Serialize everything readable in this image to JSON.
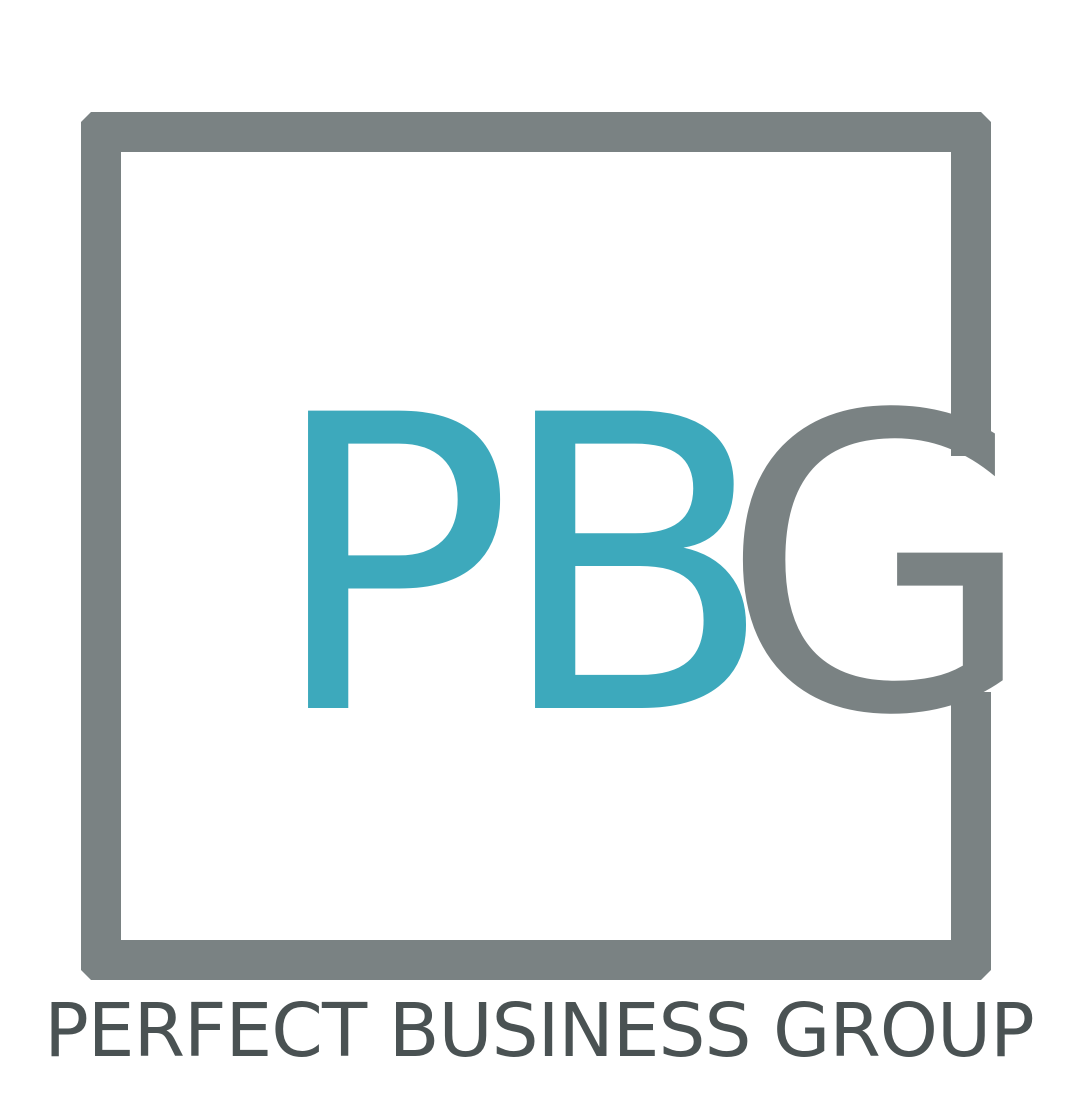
{
  "logo": {
    "monogram": {
      "letters": [
        "P",
        "B",
        "G"
      ]
    },
    "tagline": "PERFECT BUSINESS GROUP",
    "colors": {
      "teal": "#3da9bc",
      "gray": "#7a8283",
      "tagline": "#4a5253",
      "background": "#ffffff"
    }
  }
}
